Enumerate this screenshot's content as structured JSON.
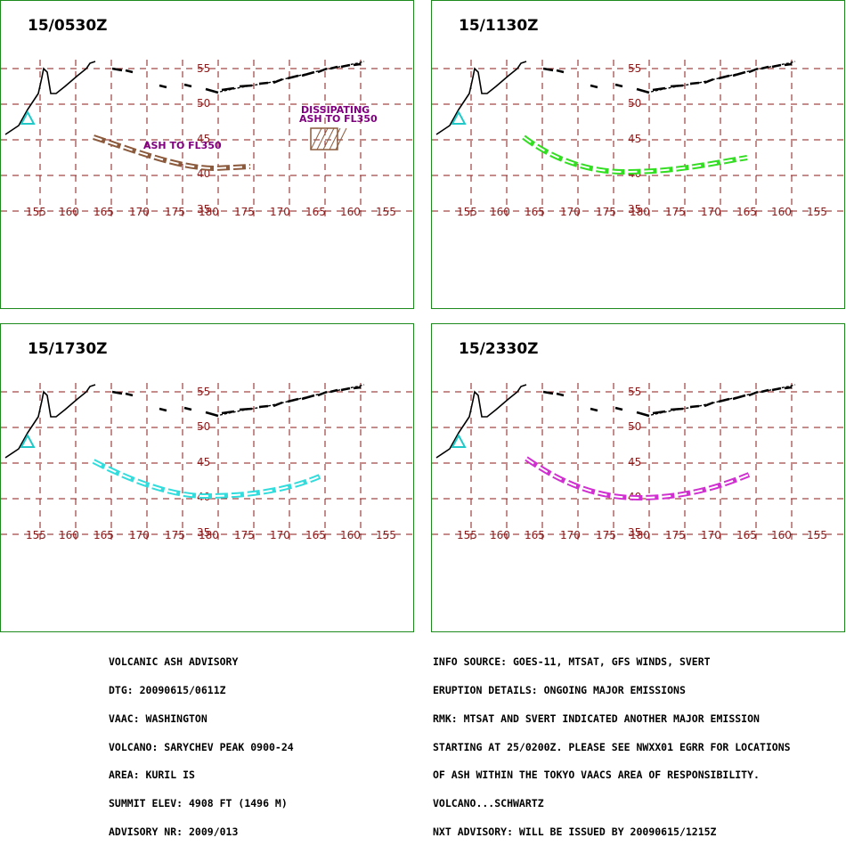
{
  "panels": [
    {
      "time": "15/0530Z",
      "color": "#8b5a3c",
      "annotations": [
        "ASH TO FL350",
        "DISSIPATING",
        "ASH TO FL350"
      ]
    },
    {
      "time": "15/1130Z",
      "color": "#33dd22",
      "annotations": []
    },
    {
      "time": "15/1730Z",
      "color": "#33dcdc",
      "annotations": []
    },
    {
      "time": "15/2330Z",
      "color": "#d030d0",
      "annotations": []
    }
  ],
  "lat_labels": [
    "55",
    "50",
    "45",
    "40",
    "35"
  ],
  "lon_labels": [
    "155",
    "160",
    "165",
    "170",
    "175",
    "180",
    "175",
    "170",
    "165",
    "160",
    "155"
  ],
  "colors": {
    "border": "#1c8a1c",
    "grid": "#8b1a1a",
    "volcano": "#22c8c8",
    "label": "#8b1a1a",
    "annotation": "#800080"
  },
  "advisory_left": [
    "VOLCANIC ASH ADVISORY",
    "DTG: 20090615/0611Z",
    "VAAC: WASHINGTON",
    "VOLCANO: SARYCHEV PEAK 0900-24",
    "AREA: KURIL IS",
    "SUMMIT ELEV: 4908 FT (1496 M)",
    "ADVISORY NR: 2009/013"
  ],
  "advisory_right": [
    "INFO SOURCE: GOES-11, MTSAT, GFS WINDS, SVERT",
    "ERUPTION DETAILS: ONGOING MAJOR EMISSIONS",
    "RMK: MTSAT AND SVERT INDICATED ANOTHER MAJOR EMISSION",
    "STARTING AT 25/0200Z. PLEASE SEE NWXX01 EGRR FOR LOCATIONS",
    "OF ASH WITHIN THE TOKYO VAACS AREA OF RESPONSIBILITY.",
    "VOLCANO...SCHWARTZ",
    "NXT ADVISORY: WILL BE ISSUED BY 20090615/1215Z"
  ]
}
